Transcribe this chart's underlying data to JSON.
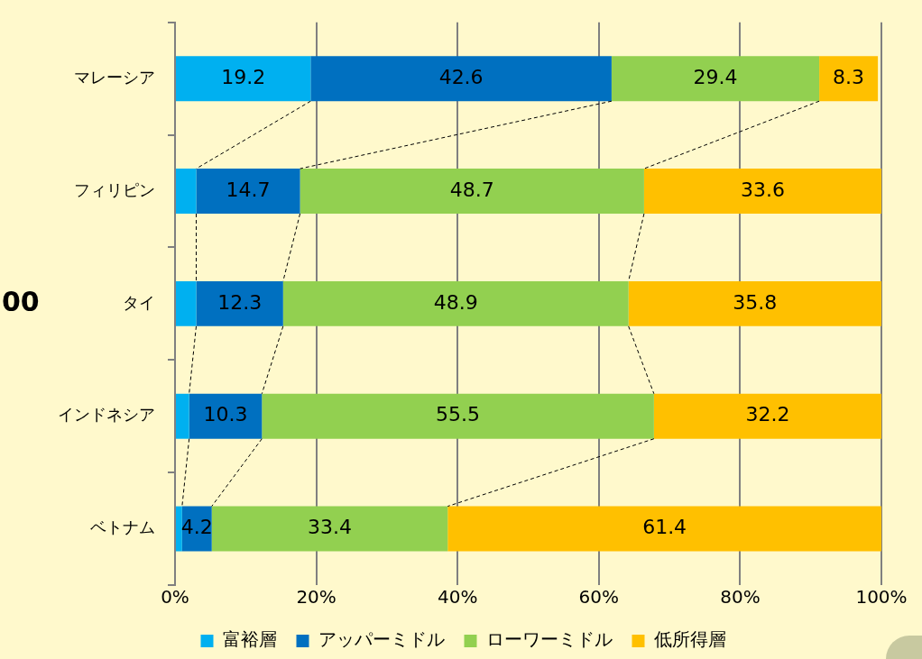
{
  "chart_data": {
    "type": "bar",
    "orientation": "horizontal",
    "stacked": true,
    "categories": [
      "マレーシア",
      "フィリピン",
      "タイ",
      "インドネシア",
      "ベトナム"
    ],
    "series": [
      {
        "name": "富裕層",
        "color": "#00b0f0",
        "values": [
          19.2,
          3.0,
          3.0,
          2.0,
          1.0
        ],
        "value_labels": [
          "19.2",
          null,
          null,
          null,
          null
        ]
      },
      {
        "name": "アッパーミドル",
        "color": "#0070c0",
        "values": [
          42.6,
          14.7,
          12.3,
          10.3,
          4.2
        ],
        "value_labels": [
          "42.6",
          "14.7",
          "12.3",
          "10.3",
          "4.2"
        ]
      },
      {
        "name": "ローワーミドル",
        "color": "#92d050",
        "values": [
          29.4,
          48.7,
          48.9,
          55.5,
          33.4
        ],
        "value_labels": [
          "29.4",
          "48.7",
          "48.9",
          "55.5",
          "33.4"
        ]
      },
      {
        "name": "低所得層",
        "color": "#ffc000",
        "values": [
          8.3,
          33.6,
          35.8,
          32.2,
          61.4
        ],
        "value_labels": [
          "8.3",
          "33.6",
          "35.8",
          "32.2",
          "61.4"
        ]
      }
    ],
    "xlim": [
      0,
      100
    ],
    "xticks": [
      {
        "value": 0,
        "label": "0%"
      },
      {
        "value": 20,
        "label": "20%"
      },
      {
        "value": 40,
        "label": "40%"
      },
      {
        "value": 60,
        "label": "60%"
      },
      {
        "value": 80,
        "label": "80%"
      },
      {
        "value": 100,
        "label": "100%"
      }
    ],
    "grid": "x",
    "legend": "bottom",
    "annotations": [
      "00"
    ]
  }
}
